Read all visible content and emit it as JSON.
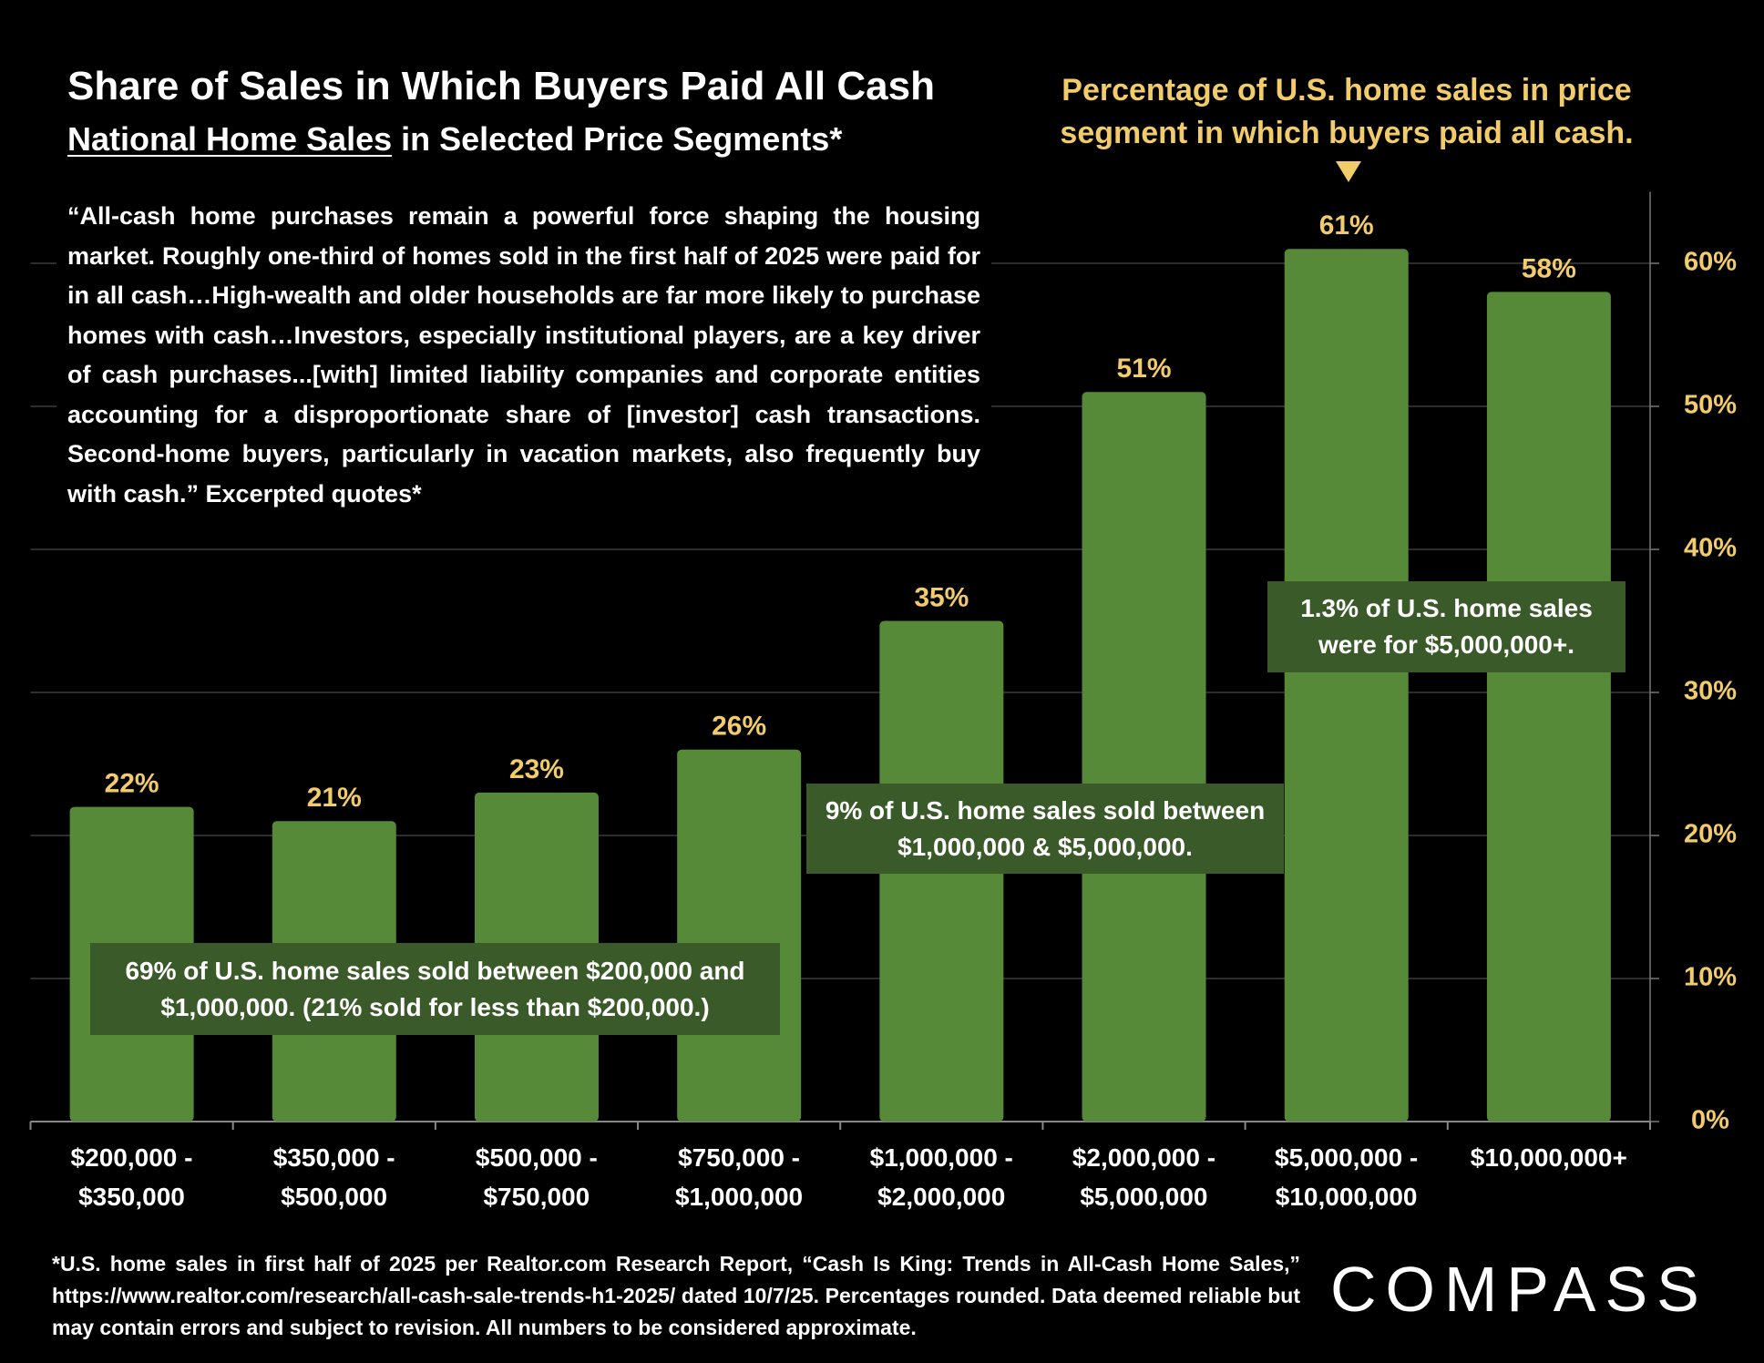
{
  "chart_data": {
    "type": "bar",
    "title": "Share of Sales in Which Buyers Paid All Cash",
    "subtitle": [
      "National Home Sales",
      "in Selected Price Segments*"
    ],
    "quote": "“All-cash home purchases remain a powerful force shaping the housing market. Roughly one-third of homes sold in the first half of 2025 were paid for in all cash…High-wealth and older households are far more likely to purchase homes with cash…Investors, especially institutional players, are a key driver of cash purchases...[with] limited liability companies and corporate entities accounting for a disproportionate share of [investor] cash transactions. Second-home buyers, particularly in vacation markets, also frequently buy with cash.” Excerpted quotes*",
    "legend_note": "Percentage of U.S. home sales in price segment in which buyers paid all cash.",
    "categories": [
      "$200,000 - $350,000",
      "$350,000 - $500,000",
      "$500,000 - $750,000",
      "$750,000 - $1,000,000",
      "$1,000,000 - $2,000,000",
      "$2,000,000 - $5,000,000",
      "$5,000,000 - $10,000,000",
      "$10,000,000+"
    ],
    "values": [
      22,
      21,
      23,
      26,
      35,
      51,
      61,
      58
    ],
    "value_labels": [
      "22%",
      "21%",
      "23%",
      "26%",
      "35%",
      "51%",
      "61%",
      "58%"
    ],
    "color": "#578a38",
    "ylim": [
      0,
      65
    ],
    "yticks": [
      {
        "value": 0,
        "label": "0%"
      },
      {
        "value": 10,
        "label": "10%"
      },
      {
        "value": 20,
        "label": "20%"
      },
      {
        "value": 30,
        "label": "30%"
      },
      {
        "value": 40,
        "label": "40%"
      },
      {
        "value": 50,
        "label": "50%"
      },
      {
        "value": 60,
        "label": "60%"
      }
    ],
    "grid": true,
    "annotations": [
      "69% of U.S. home sales sold between $200,000 and $1,000,000. (21% sold for less than $200,000.)",
      "9% of U.S. home sales sold between $1,000,000 & $5,000,000.",
      "1.3% of U.S. home sales were for  $5,000,000+."
    ],
    "footnote": "*U.S. home sales in first half of 2025 per Realtor.com Research Report, “Cash Is King: Trends in All-Cash Home Sales,” https://www.realtor.com/research/all-cash-sale-trends-h1-2025/ dated 10/7/25. Percentages rounded. Data deemed reliable but may contain errors and subject to revision. All numbers to be considered approximate.",
    "brand": "COMPASS"
  }
}
